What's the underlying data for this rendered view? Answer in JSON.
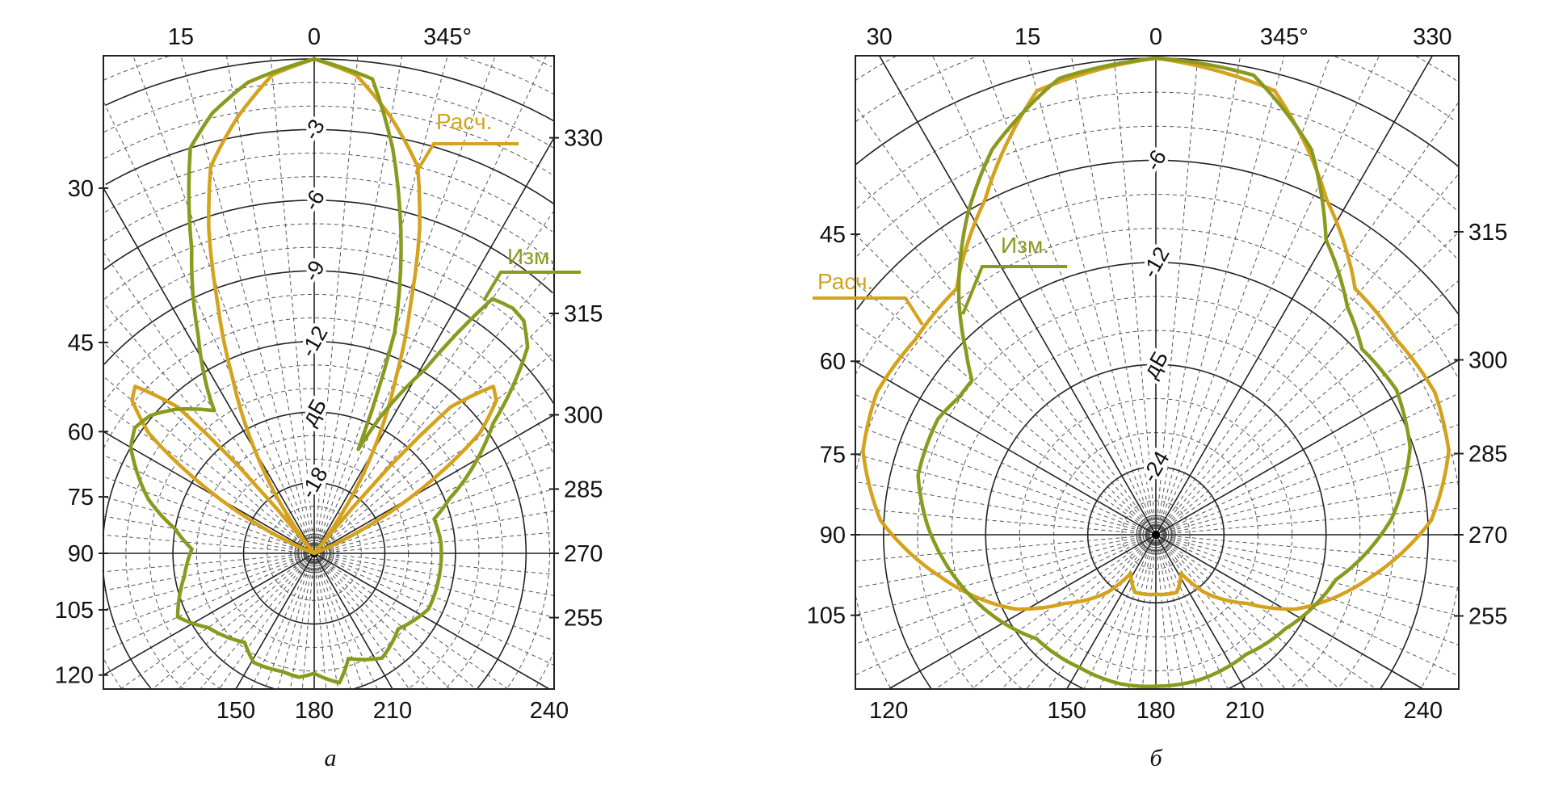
{
  "chart_data": {
    "type": "polar",
    "panels": [
      {
        "caption": "а",
        "angle_unit": "°",
        "angle_labels": [
          {
            "angle": 15,
            "text": "15"
          },
          {
            "angle": 0,
            "text": "0"
          },
          {
            "angle": 345,
            "text": "345°"
          },
          {
            "angle": 30,
            "text": "30"
          },
          {
            "angle": 45,
            "text": "45"
          },
          {
            "angle": 60,
            "text": "60"
          },
          {
            "angle": 75,
            "text": "75"
          },
          {
            "angle": 90,
            "text": "90"
          },
          {
            "angle": 105,
            "text": "105"
          },
          {
            "angle": 120,
            "text": "120"
          },
          {
            "angle": 150,
            "text": "150"
          },
          {
            "angle": 180,
            "text": "180"
          },
          {
            "angle": 210,
            "text": "210"
          },
          {
            "angle": 240,
            "text": "240"
          },
          {
            "angle": 255,
            "text": "255"
          },
          {
            "angle": 270,
            "text": "270"
          },
          {
            "angle": 285,
            "text": "285"
          },
          {
            "angle": 300,
            "text": "300"
          },
          {
            "angle": 315,
            "text": "315"
          },
          {
            "angle": 330,
            "text": "330"
          }
        ],
        "radial_labels": [
          {
            "value": -3,
            "text": "-3"
          },
          {
            "value": -6,
            "text": "-6"
          },
          {
            "value": -9,
            "text": "-9"
          },
          {
            "value": -12,
            "text": "-12"
          },
          {
            "value": -15,
            "text": "дБ"
          },
          {
            "value": -18,
            "text": "-18"
          }
        ],
        "rlim": [
          -21,
          0
        ],
        "major_ring_step": 3,
        "minor_ring_step": 1,
        "series": [
          {
            "name": "Расч.",
            "color": "#d4a21c",
            "points": [
              [
                0,
                0
              ],
              [
                5,
                -0.6
              ],
              [
                10,
                -2.2
              ],
              [
                15,
                -4
              ],
              [
                18,
                -6.5
              ],
              [
                21,
                -9.5
              ],
              [
                25,
                -12.8
              ],
              [
                30,
                -16
              ],
              [
                35,
                -19
              ],
              [
                39,
                -21
              ],
              [
                41,
                -16
              ],
              [
                43,
                -12.5
              ],
              [
                47,
                -10.6
              ],
              [
                50,
                -10.9
              ],
              [
                54,
                -12.3
              ],
              [
                58,
                -15
              ],
              [
                63,
                -18.3
              ],
              [
                68,
                -21
              ],
              [
                180,
                -21
              ],
              [
                292,
                -21
              ],
              [
                297,
                -18.3
              ],
              [
                302,
                -15
              ],
              [
                306,
                -12.3
              ],
              [
                310,
                -10.9
              ],
              [
                313,
                -10.6
              ],
              [
                317,
                -12.5
              ],
              [
                319,
                -16
              ],
              [
                321,
                -21
              ],
              [
                325,
                -19
              ],
              [
                330,
                -16
              ],
              [
                335,
                -12.8
              ],
              [
                339,
                -9.5
              ],
              [
                342,
                -6.5
              ],
              [
                345,
                -4
              ],
              [
                350,
                -2.2
              ],
              [
                355,
                -0.6
              ],
              [
                360,
                0
              ]
            ]
          },
          {
            "name": "Изм.",
            "color": "#8a9a1e",
            "points": [
              [
                0,
                0
              ],
              [
                8,
                -0.8
              ],
              [
                13,
                -1.8
              ],
              [
                17,
                -3
              ],
              [
                22,
                -7.1
              ],
              [
                28,
                -10.5
              ],
              [
                34,
                -13.1
              ],
              [
                35,
                -13.6
              ],
              [
                40,
                -13
              ],
              [
                44,
                -12.5
              ],
              [
                50,
                -11.9
              ],
              [
                55,
                -11.7
              ],
              [
                60,
                -12
              ],
              [
                66,
                -12.8
              ],
              [
                72,
                -13.6
              ],
              [
                80,
                -15
              ],
              [
                88,
                -15.8
              ],
              [
                100,
                -15.4
              ],
              [
                115,
                -14.6
              ],
              [
                125,
                -15.5
              ],
              [
                142,
                -16.2
              ],
              [
                151,
                -15.7
              ],
              [
                165,
                -15.8
              ],
              [
                173,
                -15.7
              ],
              [
                180,
                -15.9
              ],
              [
                191,
                -15.4
              ],
              [
                198,
                -16.3
              ],
              [
                213,
                -15.7
              ],
              [
                228,
                -16.2
              ],
              [
                244,
                -15.6
              ],
              [
                261,
                -15.6
              ],
              [
                275,
                -15.6
              ],
              [
                286,
                -15.7
              ],
              [
                292,
                -14.8
              ],
              [
                300,
                -13
              ],
              [
                306,
                -11.6
              ],
              [
                310,
                -10
              ],
              [
                314,
                -8.4
              ],
              [
                318,
                -7.7
              ],
              [
                321,
                -7.6
              ],
              [
                325,
                -7.8
              ],
              [
                329,
                -11.9
              ],
              [
                334,
                -14.5
              ],
              [
                337,
                -16.2
              ],
              [
                340,
                -11
              ],
              [
                344,
                -7.6
              ],
              [
                349,
                -3.5
              ],
              [
                353,
                -0.7
              ],
              [
                360,
                0
              ]
            ]
          }
        ]
      },
      {
        "caption": "б",
        "angle_unit": "°",
        "angle_labels": [
          {
            "angle": 30,
            "text": "30"
          },
          {
            "angle": 15,
            "text": "15"
          },
          {
            "angle": 0,
            "text": "0"
          },
          {
            "angle": 345,
            "text": "345°"
          },
          {
            "angle": 330,
            "text": "330"
          },
          {
            "angle": 45,
            "text": "45"
          },
          {
            "angle": 60,
            "text": "60"
          },
          {
            "angle": 75,
            "text": "75"
          },
          {
            "angle": 90,
            "text": "90"
          },
          {
            "angle": 105,
            "text": "105"
          },
          {
            "angle": 120,
            "text": "120"
          },
          {
            "angle": 150,
            "text": "150"
          },
          {
            "angle": 180,
            "text": "180"
          },
          {
            "angle": 210,
            "text": "210"
          },
          {
            "angle": 240,
            "text": "240"
          },
          {
            "angle": 255,
            "text": "255"
          },
          {
            "angle": 270,
            "text": "270"
          },
          {
            "angle": 285,
            "text": "285"
          },
          {
            "angle": 300,
            "text": "300"
          },
          {
            "angle": 315,
            "text": "315"
          }
        ],
        "radial_labels": [
          {
            "value": -6,
            "text": "-6"
          },
          {
            "value": -12,
            "text": "-12"
          },
          {
            "value": -18,
            "text": "дБ"
          },
          {
            "value": -24,
            "text": "-24"
          }
        ],
        "rlim": [
          -28,
          0
        ],
        "major_ring_step": 6,
        "minor_ring_step": 2,
        "series": [
          {
            "name": "Расч.",
            "color": "#d4a21c",
            "points": [
              [
                0,
                0
              ],
              [
                15,
                -1
              ],
              [
                27,
                -5.9
              ],
              [
                39,
                -9.4
              ],
              [
                51,
                -9.8
              ],
              [
                63,
                -9.6
              ],
              [
                74,
                -10.1
              ],
              [
                87,
                -11.8
              ],
              [
                101,
                -15.1
              ],
              [
                118,
                -18.7
              ],
              [
                127,
                -21.3
              ],
              [
                140,
                -23.6
              ],
              [
                147,
                -25.3
              ],
              [
                160,
                -24.4
              ],
              [
                180,
                -24.5
              ],
              [
                200,
                -24.4
              ],
              [
                213,
                -25.3
              ],
              [
                220,
                -23.6
              ],
              [
                233,
                -21.3
              ],
              [
                242,
                -18.7
              ],
              [
                259,
                -15.1
              ],
              [
                273,
                -11.8
              ],
              [
                286,
                -10.1
              ],
              [
                297,
                -9.6
              ],
              [
                309,
                -9.8
              ],
              [
                321,
                -9.4
              ],
              [
                333,
                -5.9
              ],
              [
                345,
                -1
              ],
              [
                360,
                0
              ]
            ]
          },
          {
            "name": "Изм.",
            "color": "#8a9a1e",
            "points": [
              [
                0,
                0
              ],
              [
                12,
                -0.6
              ],
              [
                23,
                -3.4
              ],
              [
                30.5,
                -6.2
              ],
              [
                40,
                -10
              ],
              [
                46,
                -12.5
              ],
              [
                50,
                -13.9
              ],
              [
                55,
                -13.9
              ],
              [
                62,
                -13.5
              ],
              [
                76,
                -13.6
              ],
              [
                88,
                -14.6
              ],
              [
                109,
                -16.6
              ],
              [
                131,
                -18.7
              ],
              [
                150,
                -19
              ],
              [
                167,
                -19
              ],
              [
                180,
                -19.1
              ],
              [
                196,
                -19.1
              ],
              [
                217,
                -19.2
              ],
              [
                234,
                -18.6
              ],
              [
                256,
                -17.1
              ],
              [
                274,
                -14.1
              ],
              [
                289,
                -12.2
              ],
              [
                301,
                -11.5
              ],
              [
                312,
                -11.7
              ],
              [
                320,
                -10.5
              ],
              [
                330,
                -8
              ],
              [
                338,
                -3.6
              ],
              [
                348,
                -0.4
              ],
              [
                360,
                0
              ]
            ]
          }
        ]
      }
    ]
  }
}
